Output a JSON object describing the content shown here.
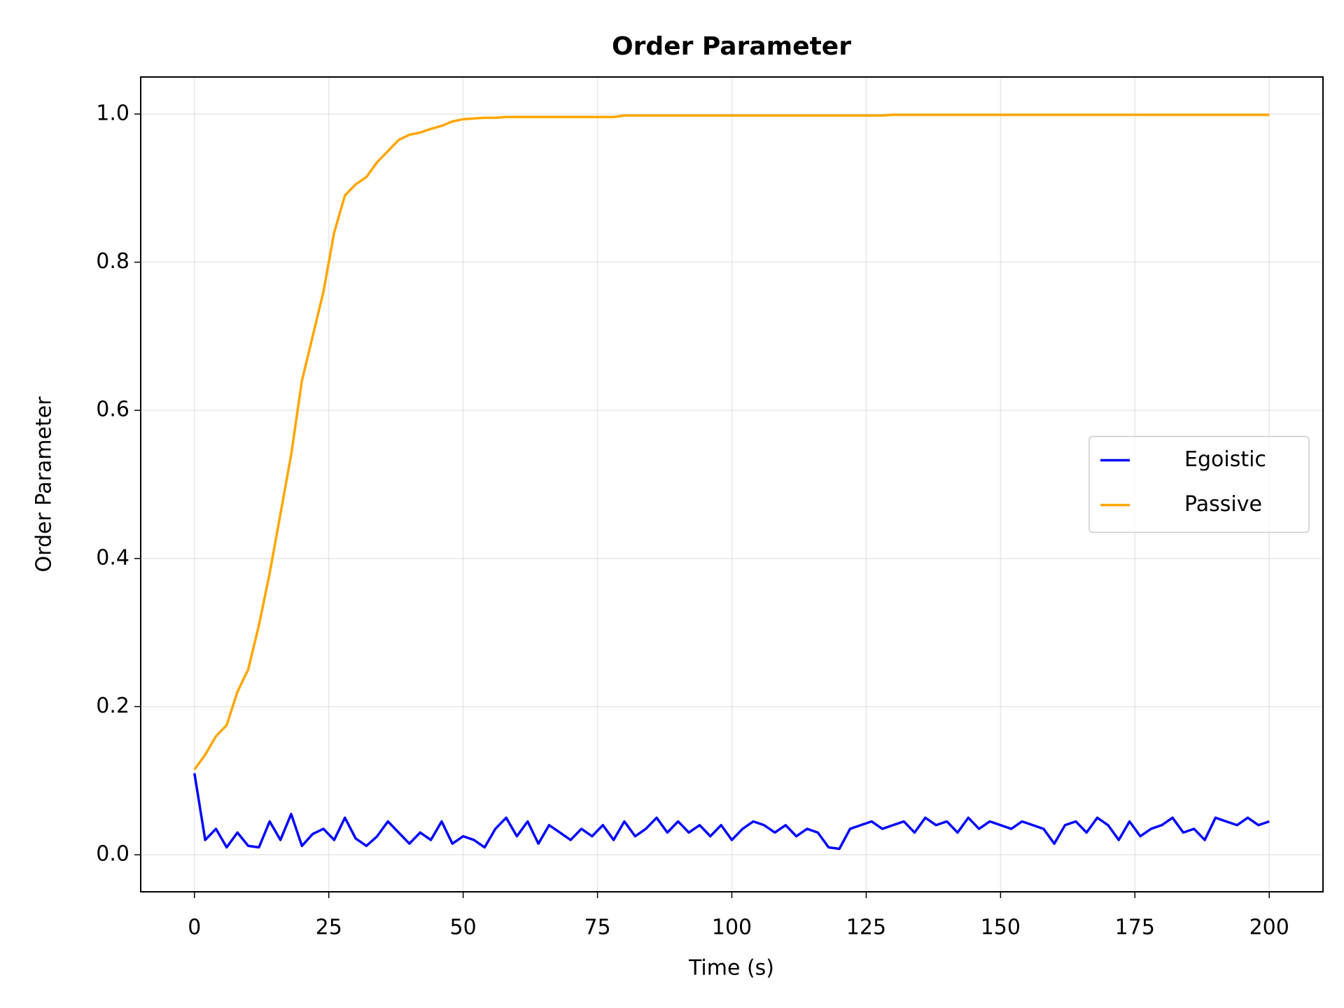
{
  "chart_data": {
    "type": "line",
    "title": "Order Parameter",
    "x_label": "Time (s)",
    "y_label": "Order Parameter",
    "x": [
      0,
      2,
      4,
      6,
      8,
      10,
      12,
      14,
      16,
      18,
      20,
      22,
      24,
      26,
      28,
      30,
      32,
      34,
      36,
      38,
      40,
      42,
      44,
      46,
      48,
      50,
      52,
      54,
      56,
      58,
      60,
      62,
      64,
      66,
      68,
      70,
      72,
      74,
      76,
      78,
      80,
      82,
      84,
      86,
      88,
      90,
      92,
      94,
      96,
      98,
      100,
      102,
      104,
      106,
      108,
      110,
      112,
      114,
      116,
      118,
      120,
      122,
      124,
      126,
      128,
      130,
      132,
      134,
      136,
      138,
      140,
      142,
      144,
      146,
      148,
      150,
      152,
      154,
      156,
      158,
      160,
      162,
      164,
      166,
      168,
      170,
      172,
      174,
      176,
      178,
      180,
      182,
      184,
      186,
      188,
      190,
      192,
      194,
      196,
      198,
      200
    ],
    "series": [
      {
        "name": "Egoistic",
        "color": "#0000ff",
        "values": [
          0.11,
          0.02,
          0.035,
          0.01,
          0.03,
          0.012,
          0.01,
          0.045,
          0.02,
          0.055,
          0.012,
          0.028,
          0.035,
          0.02,
          0.05,
          0.022,
          0.012,
          0.025,
          0.045,
          0.03,
          0.015,
          0.03,
          0.02,
          0.045,
          0.015,
          0.025,
          0.02,
          0.01,
          0.035,
          0.05,
          0.025,
          0.045,
          0.015,
          0.04,
          0.03,
          0.02,
          0.035,
          0.025,
          0.04,
          0.02,
          0.045,
          0.025,
          0.035,
          0.05,
          0.03,
          0.045,
          0.03,
          0.04,
          0.025,
          0.04,
          0.02,
          0.035,
          0.045,
          0.04,
          0.03,
          0.04,
          0.025,
          0.035,
          0.03,
          0.01,
          0.008,
          0.035,
          0.04,
          0.045,
          0.035,
          0.04,
          0.045,
          0.03,
          0.05,
          0.04,
          0.045,
          0.03,
          0.05,
          0.035,
          0.045,
          0.04,
          0.035,
          0.045,
          0.04,
          0.035,
          0.015,
          0.04,
          0.045,
          0.03,
          0.05,
          0.04,
          0.02,
          0.045,
          0.025,
          0.035,
          0.04,
          0.05,
          0.03,
          0.035,
          0.02,
          0.05,
          0.045,
          0.04,
          0.05,
          0.04,
          0.045
        ]
      },
      {
        "name": "Passive",
        "color": "#ffa500",
        "values": [
          0.115,
          0.135,
          0.16,
          0.175,
          0.22,
          0.25,
          0.31,
          0.38,
          0.46,
          0.54,
          0.64,
          0.7,
          0.76,
          0.84,
          0.89,
          0.905,
          0.915,
          0.935,
          0.95,
          0.965,
          0.972,
          0.975,
          0.98,
          0.984,
          0.99,
          0.993,
          0.994,
          0.995,
          0.995,
          0.996,
          0.996,
          0.996,
          0.996,
          0.996,
          0.996,
          0.996,
          0.996,
          0.996,
          0.996,
          0.996,
          0.998,
          0.998,
          0.998,
          0.998,
          0.998,
          0.998,
          0.998,
          0.998,
          0.998,
          0.998,
          0.998,
          0.998,
          0.998,
          0.998,
          0.998,
          0.998,
          0.998,
          0.998,
          0.998,
          0.998,
          0.998,
          0.998,
          0.998,
          0.998,
          0.998,
          0.999,
          0.999,
          0.999,
          0.999,
          0.999,
          0.999,
          0.999,
          0.999,
          0.999,
          0.999,
          0.999,
          0.999,
          0.999,
          0.999,
          0.999,
          0.999,
          0.999,
          0.999,
          0.999,
          0.999,
          0.999,
          0.999,
          0.999,
          0.999,
          0.999,
          0.999,
          0.999,
          0.999,
          0.999,
          0.999,
          0.999,
          0.999,
          0.999,
          0.999,
          0.999,
          0.999
        ]
      }
    ],
    "xlim": [
      -10,
      210
    ],
    "ylim": [
      -0.05,
      1.05
    ],
    "xticks": [
      0,
      25,
      50,
      75,
      100,
      125,
      150,
      175,
      200
    ],
    "yticks": [
      {
        "value": 0,
        "label": "0.0"
      },
      0.2,
      0.4,
      0.6,
      0.8,
      {
        "value": 1,
        "label": "1.0"
      }
    ],
    "grid": true,
    "legend": "center right"
  }
}
